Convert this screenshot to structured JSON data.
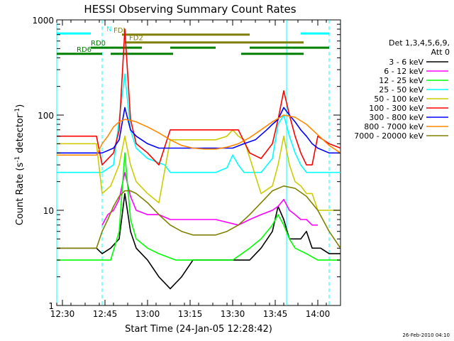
{
  "chart_data": {
    "type": "line",
    "title": "HESSI Observing Summary Count Rates",
    "xlabel": "Start Time (24-Jan-05 12:28:42)",
    "ylabel_parts": [
      "Count Rate (s",
      "-1",
      " detector",
      "-1",
      ")"
    ],
    "yscale": "log",
    "ylim": [
      1,
      1000
    ],
    "xlim_minutes": [
      "12:28",
      "14:08"
    ],
    "x_ticks": [
      "12:30",
      "12:45",
      "13:00",
      "13:15",
      "13:30",
      "13:45",
      "14:00"
    ],
    "y_ticks": [
      "1",
      "10",
      "100",
      "1000"
    ],
    "grid": false,
    "legend_placement": "right",
    "legend_header": [
      "Det 1,3,4,5,6,9,",
      "Att 0"
    ],
    "footer": "26-Feb-2010 04:10",
    "series": [
      {
        "name": "3 - 6 keV",
        "color": "#000000",
        "x": [
          "12:28",
          "12:36",
          "12:42",
          "12:44",
          "12:47",
          "12:50",
          "12:52",
          "12:54",
          "12:56",
          "13:00",
          "13:04",
          "13:08",
          "13:12",
          "13:16",
          "13:20",
          "13:24",
          "13:28",
          "13:32",
          "13:36",
          "13:40",
          "13:44",
          "13:46",
          "13:48",
          "13:50",
          "13:52",
          "13:54",
          "13:56",
          "13:58",
          "14:01",
          "14:04",
          "14:08"
        ],
        "y": [
          4,
          4,
          4,
          3.5,
          4,
          5,
          15,
          6,
          4,
          3,
          2,
          1.5,
          2,
          3,
          3,
          3,
          3,
          3,
          3,
          4,
          6,
          11,
          8,
          5,
          5,
          5,
          6,
          4,
          4,
          3.5,
          3.5
        ]
      },
      {
        "name": "6 - 12 keV",
        "color": "#ff00ff",
        "x": [
          "12:44",
          "12:46",
          "12:48",
          "12:50",
          "12:52",
          "12:54",
          "12:56",
          "13:00",
          "13:04",
          "13:08",
          "13:16",
          "13:24",
          "13:32",
          "13:36",
          "13:40",
          "13:44",
          "13:46",
          "13:48",
          "13:50",
          "13:52",
          "13:54",
          "13:56",
          "13:58",
          "14:00"
        ],
        "y": [
          7,
          9,
          10,
          13,
          25,
          14,
          10,
          9,
          9,
          8,
          8,
          8,
          7,
          8,
          9,
          10,
          11,
          13,
          10,
          9,
          8,
          8,
          7,
          7
        ]
      },
      {
        "name": "12 - 25 keV",
        "color": "#00ff00",
        "x": [
          "12:28",
          "12:36",
          "12:44",
          "12:47",
          "12:50",
          "12:52",
          "12:54",
          "12:56",
          "13:00",
          "13:04",
          "13:10",
          "13:20",
          "13:30",
          "13:36",
          "13:40",
          "13:44",
          "13:46",
          "13:48",
          "13:50",
          "13:52",
          "13:56",
          "14:00",
          "14:08"
        ],
        "y": [
          3,
          3,
          3,
          3,
          6,
          40,
          8,
          5,
          4,
          3.5,
          3,
          3,
          3,
          4,
          5,
          7,
          9,
          7,
          5,
          4,
          3.5,
          3,
          3
        ]
      },
      {
        "name": "25 - 50 keV",
        "color": "#00ffff",
        "x": [
          "12:28",
          "12:36",
          "12:42",
          "12:44",
          "12:48",
          "12:50",
          "12:52",
          "12:54",
          "12:56",
          "13:00",
          "13:06",
          "13:08",
          "13:16",
          "13:24",
          "13:28",
          "13:30",
          "13:32",
          "13:34",
          "13:40",
          "13:44",
          "13:46",
          "13:48",
          "13:50",
          "13:52",
          "13:54",
          "13:56",
          "13:58",
          "14:00",
          "14:04",
          "14:08"
        ],
        "y": [
          25,
          25,
          25,
          25,
          30,
          90,
          270,
          70,
          45,
          35,
          30,
          25,
          25,
          25,
          28,
          38,
          30,
          25,
          25,
          35,
          80,
          100,
          60,
          40,
          30,
          25,
          25,
          25,
          25,
          25
        ]
      },
      {
        "name": "50 - 100 keV",
        "color": "#cccc00",
        "x": [
          "12:28",
          "12:36",
          "12:42",
          "12:44",
          "12:47",
          "12:50",
          "12:52",
          "12:54",
          "12:56",
          "13:00",
          "13:04",
          "13:08",
          "13:16",
          "13:24",
          "13:28",
          "13:30",
          "13:32",
          "13:34",
          "13:40",
          "13:44",
          "13:46",
          "13:48",
          "13:50",
          "13:52",
          "13:54",
          "13:56",
          "13:58",
          "14:00",
          "14:04",
          "14:08"
        ],
        "y": [
          50,
          50,
          50,
          15,
          18,
          30,
          60,
          30,
          20,
          15,
          12,
          55,
          55,
          55,
          60,
          70,
          60,
          55,
          15,
          18,
          30,
          60,
          30,
          20,
          18,
          15,
          15,
          10,
          10,
          10
        ]
      },
      {
        "name": "100 - 300 keV",
        "color": "#ff0000",
        "x": [
          "12:28",
          "12:36",
          "12:42",
          "12:44",
          "12:48",
          "12:50",
          "12:52",
          "12:54",
          "12:56",
          "13:00",
          "13:04",
          "13:08",
          "13:16",
          "13:24",
          "13:32",
          "13:36",
          "13:40",
          "13:44",
          "13:46",
          "13:48",
          "13:50",
          "13:52",
          "13:54",
          "13:56",
          "13:58",
          "14:00",
          "14:04",
          "14:08"
        ],
        "y": [
          60,
          60,
          60,
          30,
          40,
          70,
          800,
          90,
          50,
          40,
          30,
          70,
          70,
          70,
          70,
          40,
          35,
          50,
          90,
          180,
          100,
          60,
          40,
          30,
          30,
          60,
          50,
          45
        ]
      },
      {
        "name": "300 - 800 keV",
        "color": "#0000ff",
        "x": [
          "12:28",
          "12:36",
          "12:42",
          "12:44",
          "12:48",
          "12:50",
          "12:52",
          "12:54",
          "12:56",
          "13:00",
          "13:04",
          "13:08",
          "13:16",
          "13:24",
          "13:30",
          "13:34",
          "13:38",
          "13:42",
          "13:44",
          "13:46",
          "13:48",
          "13:50",
          "13:52",
          "13:54",
          "13:56",
          "13:58",
          "14:00",
          "14:04",
          "14:08"
        ],
        "y": [
          40,
          40,
          40,
          40,
          45,
          55,
          120,
          70,
          60,
          50,
          45,
          45,
          45,
          45,
          45,
          50,
          55,
          70,
          80,
          90,
          120,
          100,
          85,
          70,
          60,
          50,
          45,
          40,
          40
        ]
      },
      {
        "name": "800 - 7000 keV",
        "color": "#ff8800",
        "x": [
          "12:28",
          "12:36",
          "12:42",
          "12:44",
          "12:46",
          "12:48",
          "12:50",
          "12:52",
          "12:54",
          "12:56",
          "13:00",
          "13:04",
          "13:08",
          "13:12",
          "13:16",
          "13:20",
          "13:24",
          "13:28",
          "13:32",
          "13:36",
          "13:40",
          "13:44",
          "13:48",
          "13:52",
          "13:56",
          "14:00",
          "14:04",
          "14:08"
        ],
        "y": [
          38,
          38,
          38,
          50,
          60,
          75,
          85,
          90,
          88,
          85,
          75,
          65,
          55,
          48,
          45,
          44,
          44,
          46,
          50,
          58,
          70,
          85,
          100,
          95,
          80,
          62,
          48,
          40
        ]
      },
      {
        "name": "7000 - 20000 keV",
        "color": "#808000",
        "x": [
          "12:28",
          "12:36",
          "12:42",
          "12:44",
          "12:46",
          "12:48",
          "12:50",
          "12:52",
          "12:54",
          "12:56",
          "13:00",
          "13:04",
          "13:08",
          "13:12",
          "13:16",
          "13:20",
          "13:24",
          "13:28",
          "13:32",
          "13:36",
          "13:40",
          "13:44",
          "13:48",
          "13:52",
          "13:56",
          "14:00",
          "14:04",
          "14:08"
        ],
        "y": [
          4,
          4,
          4,
          6,
          8,
          11,
          14,
          16,
          16,
          15,
          12,
          9,
          7,
          6,
          5.5,
          5.5,
          5.5,
          6,
          7,
          9,
          12,
          16,
          18,
          17,
          14,
          10,
          6,
          4
        ]
      }
    ],
    "state_bars": [
      {
        "label": "N",
        "color": "#00ffff",
        "y": 720,
        "segments": [
          [
            "12:28",
            "12:40"
          ],
          [
            "13:54",
            "14:04"
          ]
        ]
      },
      {
        "label": "FDI",
        "color": "#808000",
        "y": 700,
        "segments": [
          [
            "12:51",
            "13:36"
          ]
        ]
      },
      {
        "label": "FD2",
        "color": "#808000",
        "y": 580,
        "segments": [
          [
            "12:52",
            "13:55"
          ]
        ]
      },
      {
        "label": "RD0",
        "color": "#008000",
        "y": 510,
        "segments": [
          [
            "12:40",
            "12:58"
          ],
          [
            "13:08",
            "13:24"
          ],
          [
            "13:36",
            "14:04"
          ]
        ]
      },
      {
        "label": "RD6",
        "color": "#008000",
        "y": 440,
        "segments": [
          [
            "12:28",
            "12:44"
          ],
          [
            "12:47",
            "13:09"
          ],
          [
            "13:33",
            "13:55"
          ]
        ]
      }
    ],
    "vertical_markers": [
      {
        "time": "12:28",
        "color": "#00ffff",
        "style": "solid"
      },
      {
        "time": "12:44",
        "color": "#00ffff",
        "style": "dashed"
      },
      {
        "time": "13:49",
        "color": "#00ffff",
        "style": "solid"
      },
      {
        "time": "14:04",
        "color": "#00ffff",
        "style": "dashed"
      }
    ]
  }
}
